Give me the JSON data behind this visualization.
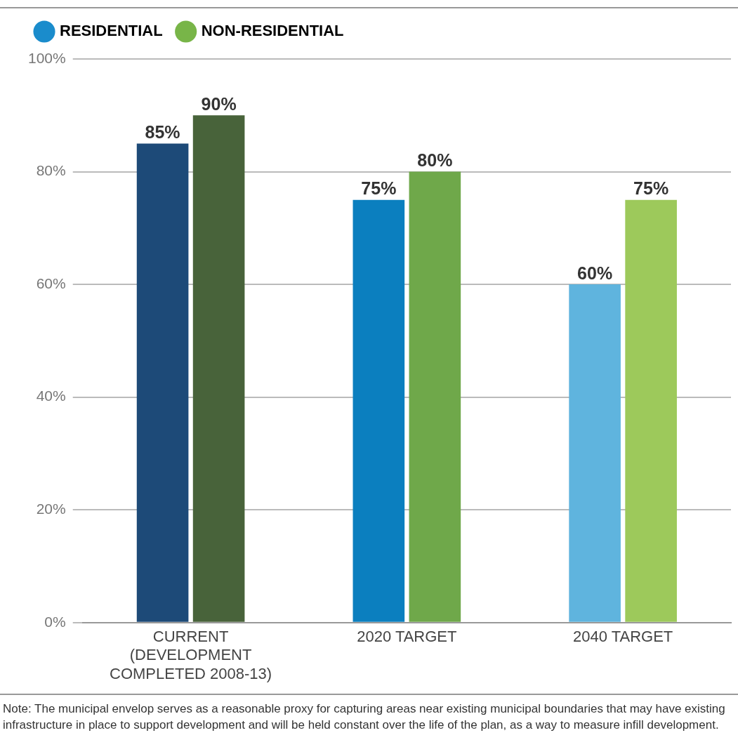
{
  "chart_data": {
    "type": "bar",
    "categories": [
      "CURRENT (DEVELOPMENT COMPLETED 2008-13)",
      "2020 TARGET",
      "2040 TARGET"
    ],
    "series": [
      {
        "name": "RESIDENTIAL",
        "color": "#1a8ccc",
        "colors": [
          "#1d4a78",
          "#0b7fbf",
          "#5fb4de"
        ],
        "values": [
          85,
          75,
          60
        ],
        "value_labels": [
          "85%",
          "75%",
          "60%"
        ]
      },
      {
        "name": "NON-RESIDENTIAL",
        "color": "#78b548",
        "colors": [
          "#48633a",
          "#6fa84a",
          "#9dc95b"
        ],
        "values": [
          90,
          80,
          75
        ],
        "value_labels": [
          "90%",
          "80%",
          "75%"
        ]
      }
    ],
    "ylim": [
      0,
      100
    ],
    "yticks": [
      {
        "value": 0,
        "label": "0%"
      },
      {
        "value": 20,
        "label": "20%"
      },
      {
        "value": 40,
        "label": "40%"
      },
      {
        "value": 60,
        "label": "60%"
      },
      {
        "value": 80,
        "label": "80%"
      },
      {
        "value": 100,
        "label": "100%"
      }
    ],
    "grid": "y",
    "legend": "top left",
    "annotations": [
      "Note: The municipal envelop serves as a reasonable proxy for capturing areas near existing municipal boundaries that may have existing infrastructure in place to support development and will be held constant over the life of the plan, as a way to measure infill development."
    ]
  }
}
